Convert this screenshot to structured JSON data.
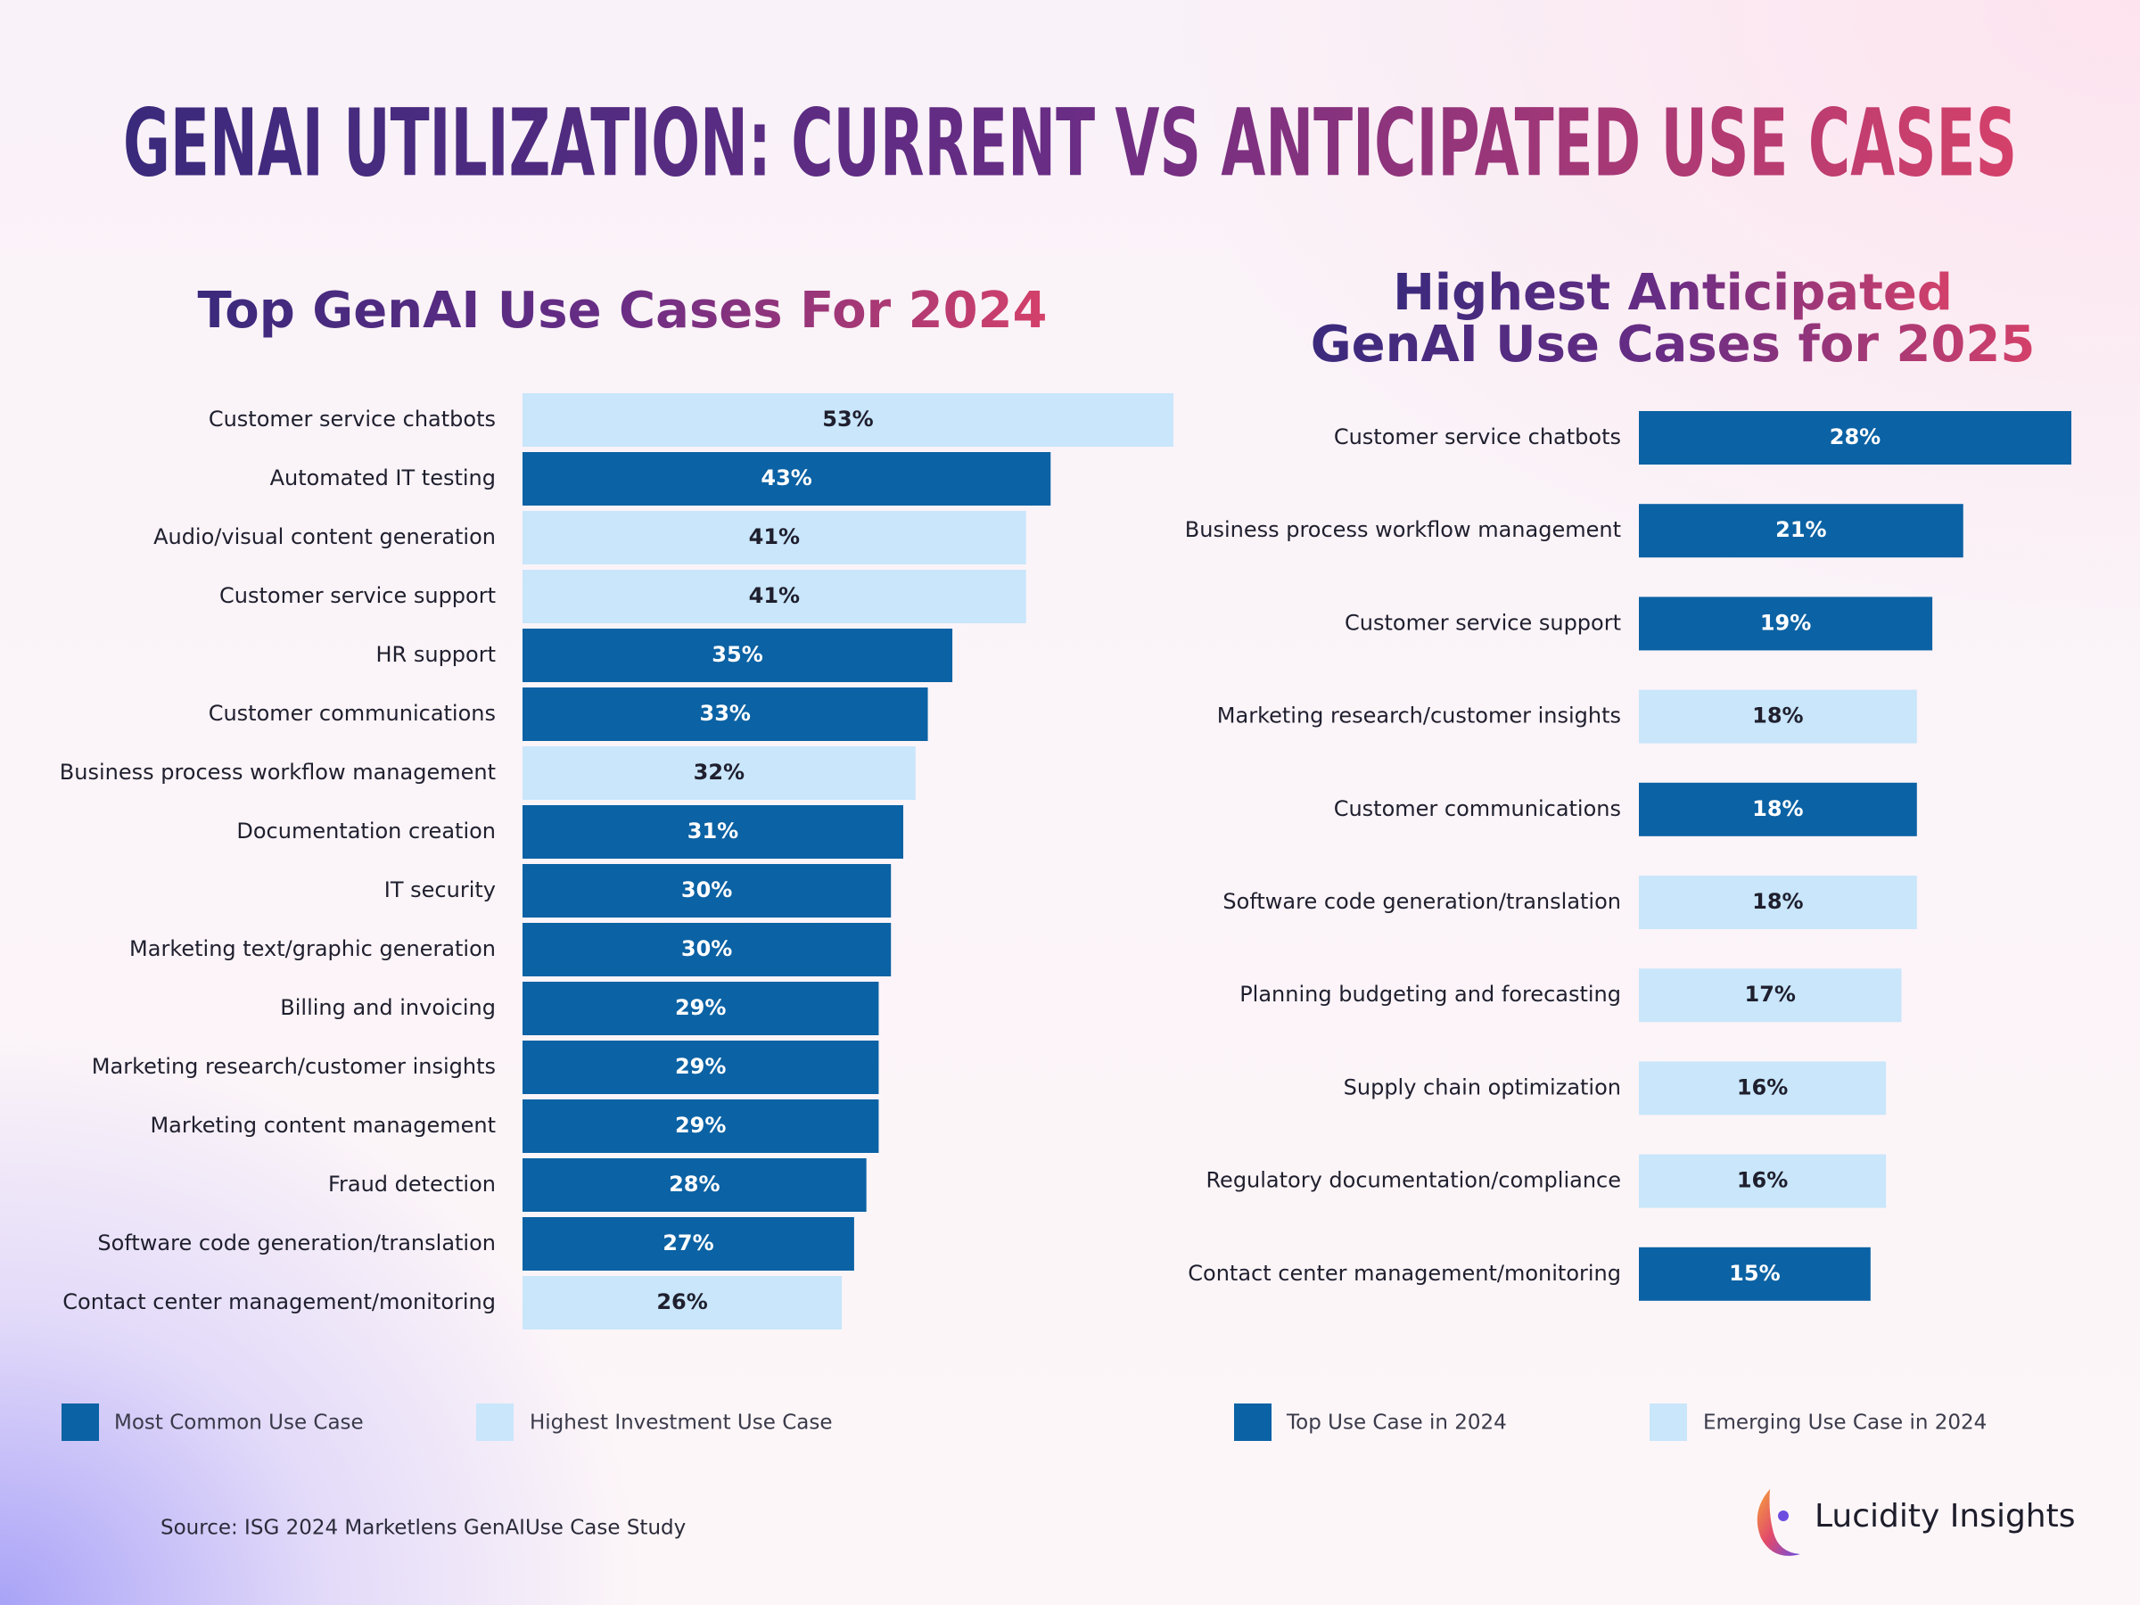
{
  "title": "GENAI UTILIZATION: CURRENT VS ANTICIPATED USE CASES",
  "chart_data": [
    {
      "type": "bar",
      "orientation": "horizontal",
      "title": "Top GenAI Use Cases For 2024",
      "categories": [
        "Customer service chatbots",
        "Automated IT testing",
        "Audio/visual content generation",
        "Customer service support",
        "HR support",
        "Customer communications",
        "Business process workflow management",
        "Documentation creation",
        "IT security",
        "Marketing text/graphic generation",
        "Billing and invoicing",
        "Marketing research/customer insights",
        "Marketing content management",
        "Fraud detection",
        "Software code generation/translation",
        "Contact center management/monitoring"
      ],
      "values": [
        53,
        43,
        41,
        41,
        35,
        33,
        32,
        31,
        30,
        30,
        29,
        29,
        29,
        28,
        27,
        26
      ],
      "value_labels": [
        "53%",
        "43%",
        "41%",
        "41%",
        "35%",
        "33%",
        "32%",
        "31%",
        "30%",
        "30%",
        "29%",
        "29%",
        "29%",
        "28%",
        "27%",
        "26%"
      ],
      "colors": [
        "#c9e6fb",
        "#0b62a4",
        "#c9e6fb",
        "#c9e6fb",
        "#0b62a4",
        "#0b62a4",
        "#c9e6fb",
        "#0b62a4",
        "#0b62a4",
        "#0b62a4",
        "#0b62a4",
        "#0b62a4",
        "#0b62a4",
        "#0b62a4",
        "#0b62a4",
        "#c9e6fb"
      ],
      "legend": [
        {
          "name": "Most Common Use Case",
          "color": "#0b62a4"
        },
        {
          "name": "Highest Investment Use Case",
          "color": "#c9e6fb"
        }
      ]
    },
    {
      "type": "bar",
      "orientation": "horizontal",
      "title": [
        "Highest Anticipated",
        "GenAI Use Cases for 2025"
      ],
      "categories": [
        "Customer service chatbots",
        "Business process workflow management",
        "Customer service support",
        "Marketing research/customer insights",
        "Customer communications",
        "Software code generation/translation",
        "Planning budgeting and forecasting",
        "Supply chain optimization",
        "Regulatory documentation/compliance",
        "Contact center management/monitoring"
      ],
      "values": [
        28,
        21,
        19,
        18,
        18,
        18,
        17,
        16,
        16,
        15
      ],
      "value_labels": [
        "28%",
        "21%",
        "19%",
        "18%",
        "18%",
        "18%",
        "17%",
        "16%",
        "16%",
        "15%"
      ],
      "colors": [
        "#0b62a4",
        "#0b62a4",
        "#0b62a4",
        "#c9e6fb",
        "#0b62a4",
        "#c9e6fb",
        "#c9e6fb",
        "#c9e6fb",
        "#c9e6fb",
        "#0b62a4"
      ],
      "legend": [
        {
          "name": "Top Use Case in 2024",
          "color": "#0b62a4"
        },
        {
          "name": "Emerging Use Case in 2024",
          "color": "#c9e6fb"
        }
      ]
    }
  ],
  "source": "Source: ISG 2024 Marketlens GenAIUse Case Study",
  "brand": "Lucidity Insights"
}
